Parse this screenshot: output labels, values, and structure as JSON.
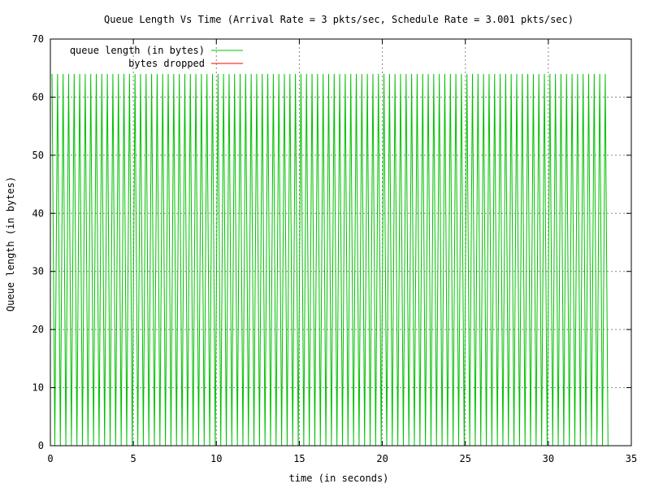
{
  "chart_data": {
    "type": "line",
    "title": "Queue Length Vs Time (Arrival Rate = 3 pkts/sec, Schedule Rate = 3.001 pkts/sec)",
    "xlabel": "time (in seconds)",
    "ylabel": "Queue length (in bytes)",
    "xlim": [
      0,
      35
    ],
    "ylim": [
      0,
      70
    ],
    "xticks": [
      0,
      5,
      10,
      15,
      20,
      25,
      30,
      35
    ],
    "yticks": [
      0,
      10,
      20,
      30,
      40,
      50,
      60,
      70
    ],
    "grid": true,
    "legend_position": "top-left",
    "series": [
      {
        "name": "queue length (in bytes)",
        "color": "#00c000",
        "pattern": {
          "shape": "sawtooth",
          "peak": 64,
          "trough": 0,
          "period": 0.3333,
          "t_start": 0.1,
          "t_end": 33.6,
          "first_value": 64
        }
      },
      {
        "name": "bytes dropped",
        "color": "#ff0000",
        "values": []
      }
    ]
  }
}
